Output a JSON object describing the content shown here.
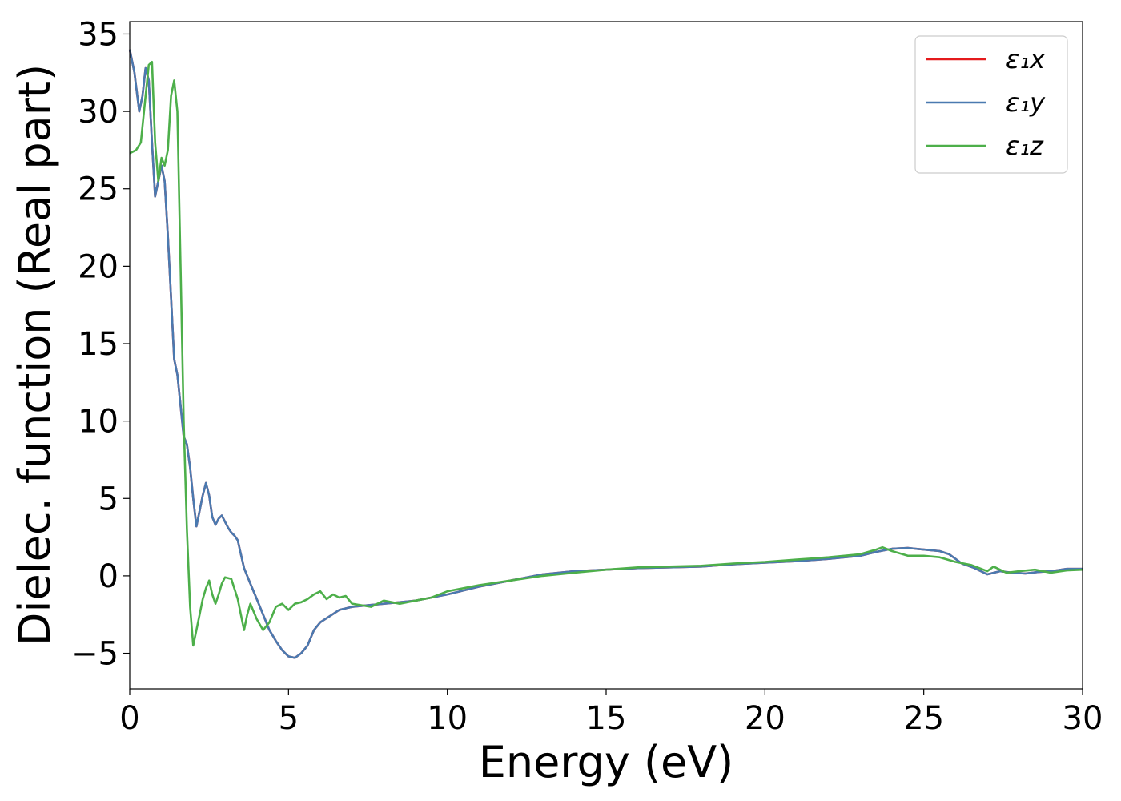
{
  "chart_data": {
    "type": "line",
    "xlabel": "Energy (eV)",
    "ylabel": "Dielec. function (Real part)",
    "xlim": [
      0,
      30
    ],
    "ylim": [
      -7.3,
      35.8
    ],
    "xticks": [
      0,
      5,
      10,
      15,
      20,
      25,
      30
    ],
    "yticks": [
      -5,
      0,
      5,
      10,
      15,
      20,
      25,
      30,
      35
    ],
    "xtick_labels": [
      "0",
      "5",
      "10",
      "15",
      "20",
      "25",
      "30"
    ],
    "ytick_labels": [
      "−5",
      "0",
      "5",
      "10",
      "15",
      "20",
      "25",
      "30",
      "35"
    ],
    "grid": false,
    "legend_position": "top-right",
    "series": [
      {
        "name": "ε₁x",
        "color": "#e41a1c",
        "x": [
          0,
          0.15,
          0.3,
          0.4,
          0.5,
          0.6,
          0.7,
          0.8,
          0.9,
          1.0,
          1.1,
          1.2,
          1.3,
          1.4,
          1.5,
          1.6,
          1.7,
          1.8,
          1.9,
          2.0,
          2.1,
          2.2,
          2.3,
          2.4,
          2.5,
          2.6,
          2.7,
          2.8,
          2.9,
          3.0,
          3.1,
          3.2,
          3.3,
          3.4,
          3.6,
          3.8,
          4.0,
          4.2,
          4.4,
          4.6,
          4.8,
          5.0,
          5.2,
          5.4,
          5.6,
          5.8,
          6.0,
          6.3,
          6.6,
          7.0,
          7.5,
          8.0,
          8.5,
          9.0,
          9.5,
          10,
          11,
          12,
          13,
          14,
          15,
          16,
          17,
          18,
          19,
          20,
          21,
          22,
          23,
          23.5,
          24,
          24.5,
          25,
          25.5,
          25.8,
          26.2,
          26.6,
          27.0,
          27.4,
          27.8,
          28.2,
          28.6,
          29.0,
          29.5,
          30
        ],
        "y": [
          34,
          32.5,
          30,
          31,
          32.8,
          32,
          28,
          24.5,
          25.5,
          26.5,
          25.5,
          22,
          18,
          14,
          13,
          11,
          9,
          8.5,
          7,
          5,
          3.2,
          4.2,
          5.2,
          6,
          5.2,
          3.8,
          3.3,
          3.7,
          3.9,
          3.5,
          3.1,
          2.8,
          2.6,
          2.3,
          0.5,
          -0.5,
          -1.5,
          -2.5,
          -3.5,
          -4.2,
          -4.8,
          -5.2,
          -5.3,
          -5.0,
          -4.5,
          -3.5,
          -3,
          -2.6,
          -2.2,
          -2.0,
          -1.9,
          -1.8,
          -1.7,
          -1.6,
          -1.4,
          -1.2,
          -0.7,
          -0.3,
          0.1,
          0.3,
          0.4,
          0.5,
          0.55,
          0.6,
          0.75,
          0.85,
          0.95,
          1.1,
          1.3,
          1.55,
          1.75,
          1.8,
          1.7,
          1.6,
          1.4,
          0.8,
          0.5,
          0.1,
          0.3,
          0.2,
          0.15,
          0.25,
          0.3,
          0.45,
          0.45
        ]
      },
      {
        "name": "ε₁y",
        "color": "#4a7ab0",
        "x": [
          0,
          0.15,
          0.3,
          0.4,
          0.5,
          0.6,
          0.7,
          0.8,
          0.9,
          1.0,
          1.1,
          1.2,
          1.3,
          1.4,
          1.5,
          1.6,
          1.7,
          1.8,
          1.9,
          2.0,
          2.1,
          2.2,
          2.3,
          2.4,
          2.5,
          2.6,
          2.7,
          2.8,
          2.9,
          3.0,
          3.1,
          3.2,
          3.3,
          3.4,
          3.6,
          3.8,
          4.0,
          4.2,
          4.4,
          4.6,
          4.8,
          5.0,
          5.2,
          5.4,
          5.6,
          5.8,
          6.0,
          6.3,
          6.6,
          7.0,
          7.5,
          8.0,
          8.5,
          9.0,
          9.5,
          10,
          11,
          12,
          13,
          14,
          15,
          16,
          17,
          18,
          19,
          20,
          21,
          22,
          23,
          23.5,
          24,
          24.5,
          25,
          25.5,
          25.8,
          26.2,
          26.6,
          27.0,
          27.4,
          27.8,
          28.2,
          28.6,
          29.0,
          29.5,
          30
        ],
        "y": [
          34,
          32.5,
          30,
          31,
          32.8,
          32,
          28,
          24.5,
          25.5,
          26.5,
          25.5,
          22,
          18,
          14,
          13,
          11,
          9,
          8.5,
          7,
          5,
          3.2,
          4.2,
          5.2,
          6,
          5.2,
          3.8,
          3.3,
          3.7,
          3.9,
          3.5,
          3.1,
          2.8,
          2.6,
          2.3,
          0.5,
          -0.5,
          -1.5,
          -2.5,
          -3.5,
          -4.2,
          -4.8,
          -5.2,
          -5.3,
          -5.0,
          -4.5,
          -3.5,
          -3,
          -2.6,
          -2.2,
          -2.0,
          -1.9,
          -1.8,
          -1.7,
          -1.6,
          -1.4,
          -1.2,
          -0.7,
          -0.3,
          0.1,
          0.3,
          0.4,
          0.5,
          0.55,
          0.6,
          0.75,
          0.85,
          0.95,
          1.1,
          1.3,
          1.55,
          1.75,
          1.8,
          1.7,
          1.6,
          1.4,
          0.8,
          0.5,
          0.1,
          0.3,
          0.2,
          0.15,
          0.25,
          0.3,
          0.45,
          0.45
        ]
      },
      {
        "name": "ε₁z",
        "color": "#4daf4a",
        "x": [
          0,
          0.2,
          0.35,
          0.5,
          0.6,
          0.7,
          0.8,
          0.9,
          1.0,
          1.1,
          1.2,
          1.3,
          1.4,
          1.5,
          1.6,
          1.7,
          1.8,
          1.9,
          2.0,
          2.1,
          2.2,
          2.3,
          2.4,
          2.5,
          2.6,
          2.7,
          2.8,
          2.9,
          3.0,
          3.2,
          3.4,
          3.6,
          3.7,
          3.8,
          4.0,
          4.2,
          4.4,
          4.6,
          4.8,
          5.0,
          5.2,
          5.4,
          5.6,
          5.8,
          6.0,
          6.2,
          6.4,
          6.6,
          6.8,
          7.0,
          7.3,
          7.6,
          8.0,
          8.5,
          9.0,
          9.5,
          10,
          11,
          12,
          13,
          14,
          15,
          16,
          17,
          18,
          19,
          20,
          21,
          22,
          23,
          23.5,
          23.7,
          24,
          24.5,
          25,
          25.5,
          26,
          26.5,
          27.0,
          27.2,
          27.6,
          28.0,
          28.5,
          29.0,
          29.5,
          30
        ],
        "y": [
          27.3,
          27.5,
          28,
          31,
          33,
          33.2,
          28,
          25.5,
          27,
          26.5,
          27.5,
          31,
          32,
          30,
          20,
          10,
          3,
          -2,
          -4.5,
          -3.5,
          -2.5,
          -1.5,
          -0.8,
          -0.3,
          -1.2,
          -1.8,
          -1.2,
          -0.5,
          -0.1,
          -0.2,
          -1.5,
          -3.5,
          -2.5,
          -1.8,
          -2.8,
          -3.5,
          -3.0,
          -2.0,
          -1.8,
          -2.2,
          -1.8,
          -1.7,
          -1.5,
          -1.2,
          -1.0,
          -1.5,
          -1.2,
          -1.4,
          -1.3,
          -1.8,
          -1.9,
          -2.0,
          -1.6,
          -1.8,
          -1.6,
          -1.4,
          -1.0,
          -0.6,
          -0.3,
          0.0,
          0.2,
          0.4,
          0.55,
          0.6,
          0.65,
          0.8,
          0.9,
          1.05,
          1.2,
          1.4,
          1.7,
          1.85,
          1.6,
          1.3,
          1.3,
          1.2,
          0.9,
          0.7,
          0.3,
          0.6,
          0.2,
          0.3,
          0.4,
          0.2,
          0.35,
          0.4
        ]
      }
    ]
  }
}
